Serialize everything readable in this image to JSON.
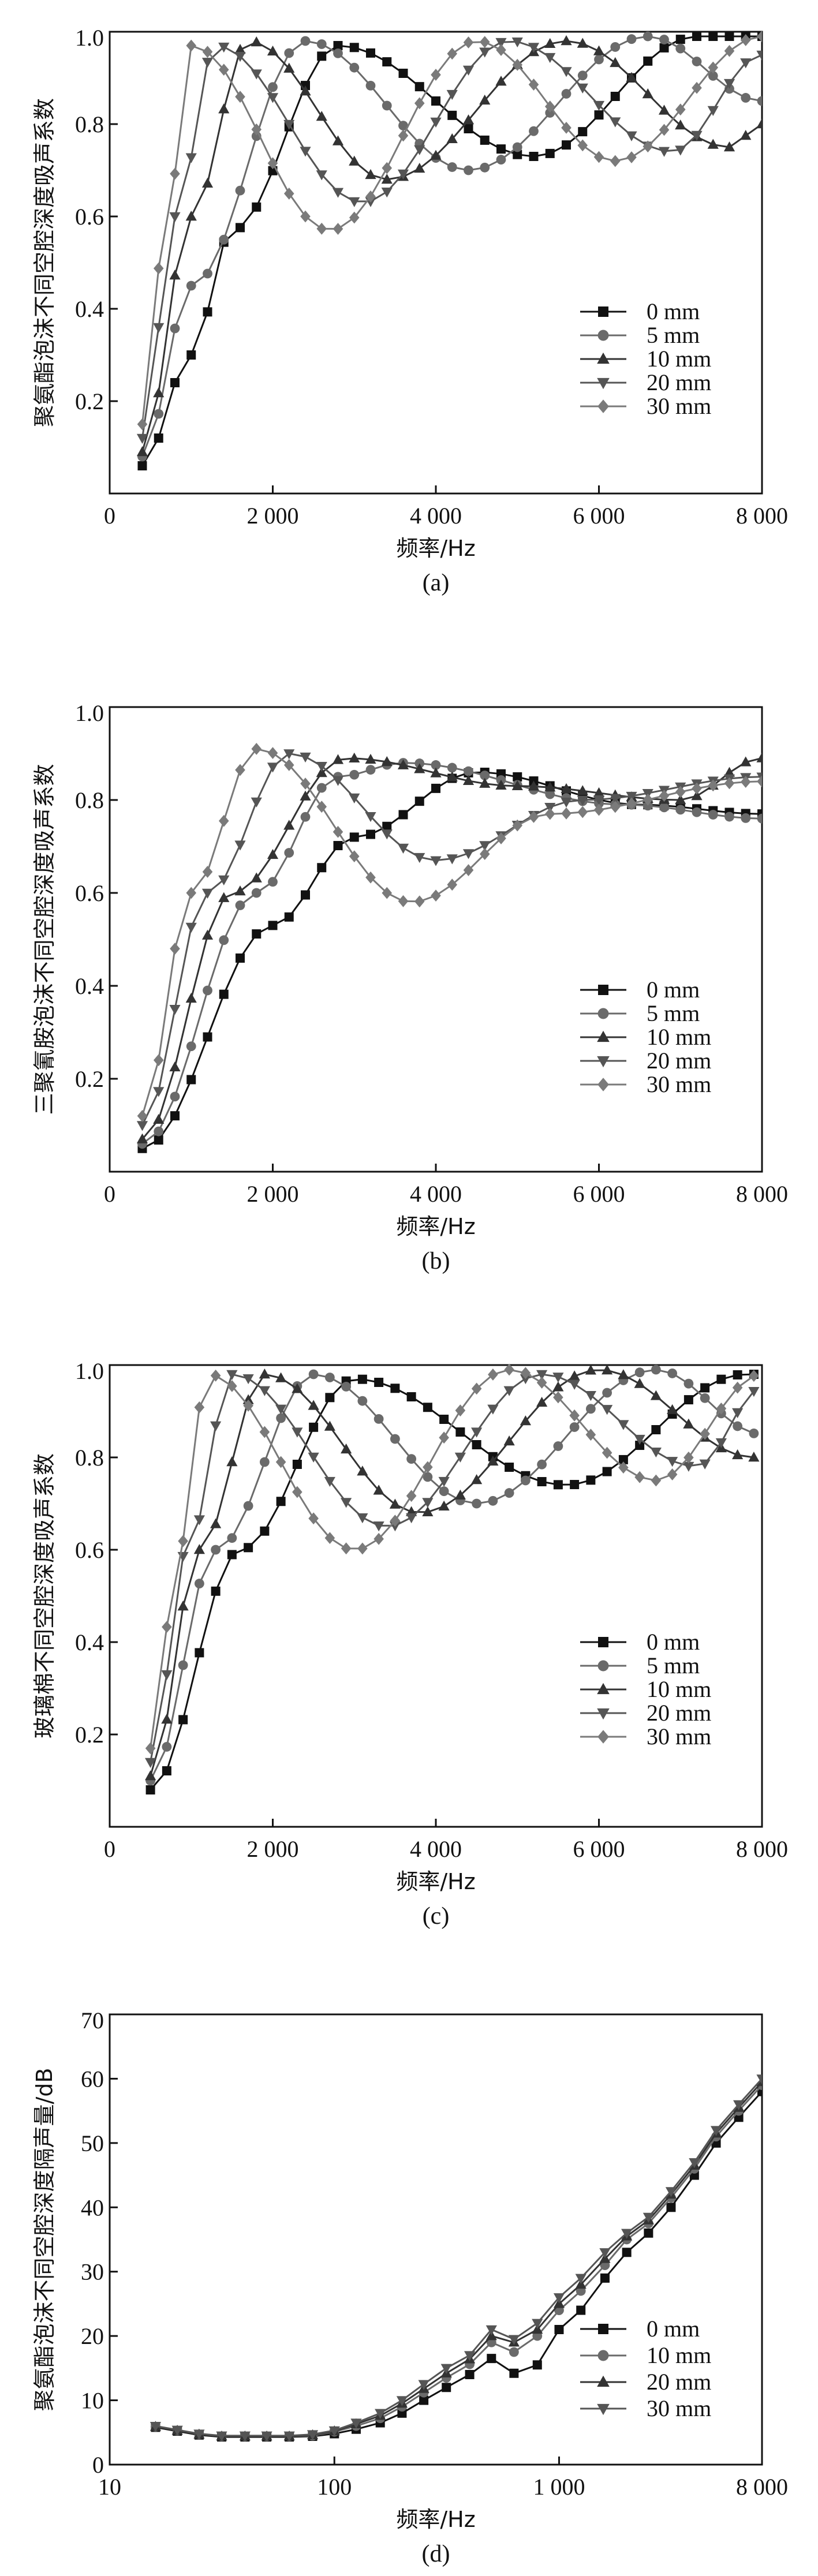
{
  "chart_data": [
    {
      "type": "line",
      "caption": "(a)",
      "xlabel": "频率/Hz",
      "ylabel": "聚氨酯泡沫不同空腔深度吸声系数",
      "xlim": [
        0,
        8000
      ],
      "ylim": [
        0,
        1.0
      ],
      "xticks": [
        0,
        2000,
        4000,
        6000,
        8000
      ],
      "xtick_labels": [
        "0",
        "2 000",
        "4 000",
        "6 000",
        "8 000"
      ],
      "yticks": [
        0.2,
        0.4,
        0.6,
        0.8,
        1.0
      ],
      "ytick_labels": [
        "0.2",
        "0.4",
        "0.6",
        "0.8",
        "1.0"
      ],
      "series": [
        {
          "name": "0 mm",
          "color": "#111111",
          "marker": "square",
          "peaks": [
            [
              400,
              0.06
            ],
            [
              1000,
              0.3
            ],
            [
              1500,
              0.57
            ],
            [
              2800,
              0.97
            ],
            [
              5200,
              0.73
            ],
            [
              7200,
              0.99
            ],
            [
              8000,
              0.99
            ]
          ]
        },
        {
          "name": "5 mm",
          "color": "#6a6a6a",
          "marker": "circle",
          "peaks": [
            [
              400,
              0.08
            ],
            [
              1000,
              0.45
            ],
            [
              2400,
              0.98
            ],
            [
              4400,
              0.7
            ],
            [
              6600,
              0.99
            ],
            [
              8000,
              0.85
            ]
          ]
        },
        {
          "name": "10 mm",
          "color": "#333333",
          "marker": "triangle-up",
          "peaks": [
            [
              400,
              0.09
            ],
            [
              1000,
              0.6
            ],
            [
              1700,
              0.98
            ],
            [
              3400,
              0.68
            ],
            [
              5600,
              0.98
            ],
            [
              7600,
              0.75
            ],
            [
              8000,
              0.8
            ]
          ]
        },
        {
          "name": "20 mm",
          "color": "#555555",
          "marker": "triangle-down",
          "peaks": [
            [
              400,
              0.12
            ],
            [
              800,
              0.6
            ],
            [
              1300,
              0.97
            ],
            [
              3100,
              0.63
            ],
            [
              4900,
              0.98
            ],
            [
              6900,
              0.74
            ],
            [
              8000,
              0.95
            ]
          ]
        },
        {
          "name": "30 mm",
          "color": "#7a7a7a",
          "marker": "diamond",
          "peaks": [
            [
              400,
              0.15
            ],
            [
              700,
              0.6
            ],
            [
              1000,
              0.97
            ],
            [
              2700,
              0.57
            ],
            [
              4500,
              0.98
            ],
            [
              6200,
              0.72
            ],
            [
              8000,
              0.99
            ]
          ]
        }
      ]
    },
    {
      "type": "line",
      "caption": "(b)",
      "xlabel": "频率/Hz",
      "ylabel": "三聚氰胺泡沫不同空腔深度吸声系数",
      "xlim": [
        0,
        8000
      ],
      "ylim": [
        0,
        1.0
      ],
      "xticks": [
        0,
        2000,
        4000,
        6000,
        8000
      ],
      "xtick_labels": [
        "0",
        "2 000",
        "4 000",
        "6 000",
        "8 000"
      ],
      "yticks": [
        0.2,
        0.4,
        0.6,
        0.8,
        1.0
      ],
      "ytick_labels": [
        "0.2",
        "0.4",
        "0.6",
        "0.8",
        "1.0"
      ],
      "series": [
        {
          "name": "0 mm",
          "color": "#111111",
          "marker": "square",
          "peaks": [
            [
              400,
              0.05
            ],
            [
              2000,
              0.53
            ],
            [
              3000,
              0.72
            ],
            [
              4500,
              0.86
            ],
            [
              6500,
              0.79
            ],
            [
              8000,
              0.77
            ]
          ]
        },
        {
          "name": "5 mm",
          "color": "#6a6a6a",
          "marker": "circle",
          "peaks": [
            [
              400,
              0.06
            ],
            [
              1800,
              0.6
            ],
            [
              2800,
              0.85
            ],
            [
              3600,
              0.88
            ],
            [
              6300,
              0.79
            ],
            [
              8000,
              0.76
            ]
          ]
        },
        {
          "name": "10 mm",
          "color": "#333333",
          "marker": "triangle-up",
          "peaks": [
            [
              400,
              0.07
            ],
            [
              1500,
              0.6
            ],
            [
              2900,
              0.89
            ],
            [
              5000,
              0.83
            ],
            [
              7000,
              0.8
            ],
            [
              8000,
              0.89
            ]
          ]
        },
        {
          "name": "20 mm",
          "color": "#555555",
          "marker": "triangle-down",
          "peaks": [
            [
              400,
              0.1
            ],
            [
              1200,
              0.6
            ],
            [
              2200,
              0.9
            ],
            [
              4000,
              0.67
            ],
            [
              5800,
              0.8
            ],
            [
              8000,
              0.85
            ]
          ]
        },
        {
          "name": "30 mm",
          "color": "#7a7a7a",
          "marker": "diamond",
          "peaks": [
            [
              400,
              0.12
            ],
            [
              1000,
              0.6
            ],
            [
              1800,
              0.91
            ],
            [
              3700,
              0.58
            ],
            [
              5400,
              0.77
            ],
            [
              8000,
              0.84
            ]
          ]
        }
      ]
    },
    {
      "type": "line",
      "caption": "(c)",
      "xlabel": "频率/Hz",
      "ylabel": "玻璃棉不同空腔深度吸声系数",
      "xlim": [
        0,
        8000
      ],
      "ylim": [
        0,
        1.0
      ],
      "xticks": [
        0,
        2000,
        4000,
        6000,
        8000
      ],
      "xtick_labels": [
        "0",
        "2 000",
        "4 000",
        "6 000",
        "8 000"
      ],
      "yticks": [
        0.2,
        0.4,
        0.6,
        0.8,
        1.0
      ],
      "ytick_labels": [
        "0.2",
        "0.4",
        "0.6",
        "0.8",
        "1.0"
      ],
      "series": [
        {
          "name": "0 mm",
          "color": "#111111",
          "marker": "square",
          "peaks": [
            [
              500,
              0.08
            ],
            [
              1600,
              0.6
            ],
            [
              3000,
              0.97
            ],
            [
              5600,
              0.74
            ],
            [
              7800,
              0.98
            ],
            [
              8000,
              0.98
            ]
          ]
        },
        {
          "name": "5 mm",
          "color": "#6a6a6a",
          "marker": "circle",
          "peaks": [
            [
              500,
              0.1
            ],
            [
              1300,
              0.6
            ],
            [
              2500,
              0.98
            ],
            [
              4500,
              0.7
            ],
            [
              6700,
              0.99
            ],
            [
              8000,
              0.85
            ]
          ]
        },
        {
          "name": "10 mm",
          "color": "#333333",
          "marker": "triangle-up",
          "peaks": [
            [
              500,
              0.11
            ],
            [
              1100,
              0.6
            ],
            [
              1900,
              0.98
            ],
            [
              3800,
              0.68
            ],
            [
              6000,
              0.99
            ],
            [
              7900,
              0.8
            ],
            [
              8000,
              0.82
            ]
          ]
        },
        {
          "name": "20 mm",
          "color": "#555555",
          "marker": "triangle-down",
          "peaks": [
            [
              500,
              0.14
            ],
            [
              950,
              0.6
            ],
            [
              1500,
              0.98
            ],
            [
              3400,
              0.65
            ],
            [
              5300,
              0.98
            ],
            [
              7200,
              0.78
            ],
            [
              8000,
              0.95
            ]
          ]
        },
        {
          "name": "30 mm",
          "color": "#7a7a7a",
          "marker": "diamond",
          "peaks": [
            [
              500,
              0.17
            ],
            [
              850,
              0.6
            ],
            [
              1200,
              0.98
            ],
            [
              3000,
              0.6
            ],
            [
              4900,
              0.99
            ],
            [
              6700,
              0.75
            ],
            [
              8000,
              0.98
            ]
          ]
        }
      ]
    },
    {
      "type": "line",
      "caption": "(d)",
      "xlabel": "频率/Hz",
      "ylabel": "聚氨酯泡沫不同空腔深度隔声量/dB",
      "xscale": "log",
      "xlim": [
        10,
        8000
      ],
      "ylim": [
        0,
        70
      ],
      "xticks": [
        10,
        100,
        1000,
        8000
      ],
      "xtick_labels": [
        "10",
        "100",
        "1 000",
        "8 000"
      ],
      "yticks": [
        0,
        10,
        20,
        30,
        40,
        50,
        60,
        70
      ],
      "ytick_labels": [
        "0",
        "10",
        "20",
        "30",
        "40",
        "50",
        "60",
        "70"
      ],
      "x": [
        16,
        20,
        25,
        31.5,
        40,
        50,
        63,
        80,
        100,
        125,
        160,
        200,
        250,
        315,
        400,
        500,
        630,
        800,
        1000,
        1250,
        1600,
        2000,
        2500,
        3150,
        4000,
        5000,
        6300,
        8000
      ],
      "series": [
        {
          "name": "0 mm",
          "color": "#111111",
          "marker": "square",
          "values": [
            5.8,
            5.2,
            4.6,
            4.3,
            4.3,
            4.3,
            4.3,
            4.4,
            4.8,
            5.5,
            6.5,
            8,
            10,
            12,
            14,
            16.5,
            14.2,
            15.5,
            21,
            24,
            29,
            33,
            36,
            40,
            45,
            50,
            54,
            58
          ]
        },
        {
          "name": "10 mm",
          "color": "#6a6a6a",
          "marker": "circle",
          "values": [
            5.9,
            5.3,
            4.7,
            4.4,
            4.4,
            4.4,
            4.4,
            4.5,
            5.1,
            6,
            7.2,
            9,
            11.2,
            13.5,
            15.6,
            19,
            17.5,
            20,
            24,
            27,
            31,
            35,
            37.5,
            41.5,
            46,
            51,
            55,
            59
          ]
        },
        {
          "name": "20 mm",
          "color": "#333333",
          "marker": "triangle-up",
          "values": [
            5.9,
            5.3,
            4.7,
            4.4,
            4.4,
            4.4,
            4.4,
            4.6,
            5.2,
            6.3,
            7.6,
            9.5,
            11.8,
            14.2,
            16.4,
            20,
            19,
            21,
            25,
            28,
            32,
            35.5,
            38,
            42,
            46.5,
            51.5,
            55.5,
            59.5
          ]
        },
        {
          "name": "30 mm",
          "color": "#555555",
          "marker": "triangle-down",
          "values": [
            6,
            5.4,
            4.8,
            4.5,
            4.5,
            4.5,
            4.5,
            4.7,
            5.3,
            6.5,
            8,
            10,
            12.5,
            15,
            17,
            21,
            19.5,
            22,
            26,
            29,
            33,
            36,
            38.5,
            42.5,
            47,
            52,
            56,
            60
          ]
        }
      ]
    }
  ]
}
